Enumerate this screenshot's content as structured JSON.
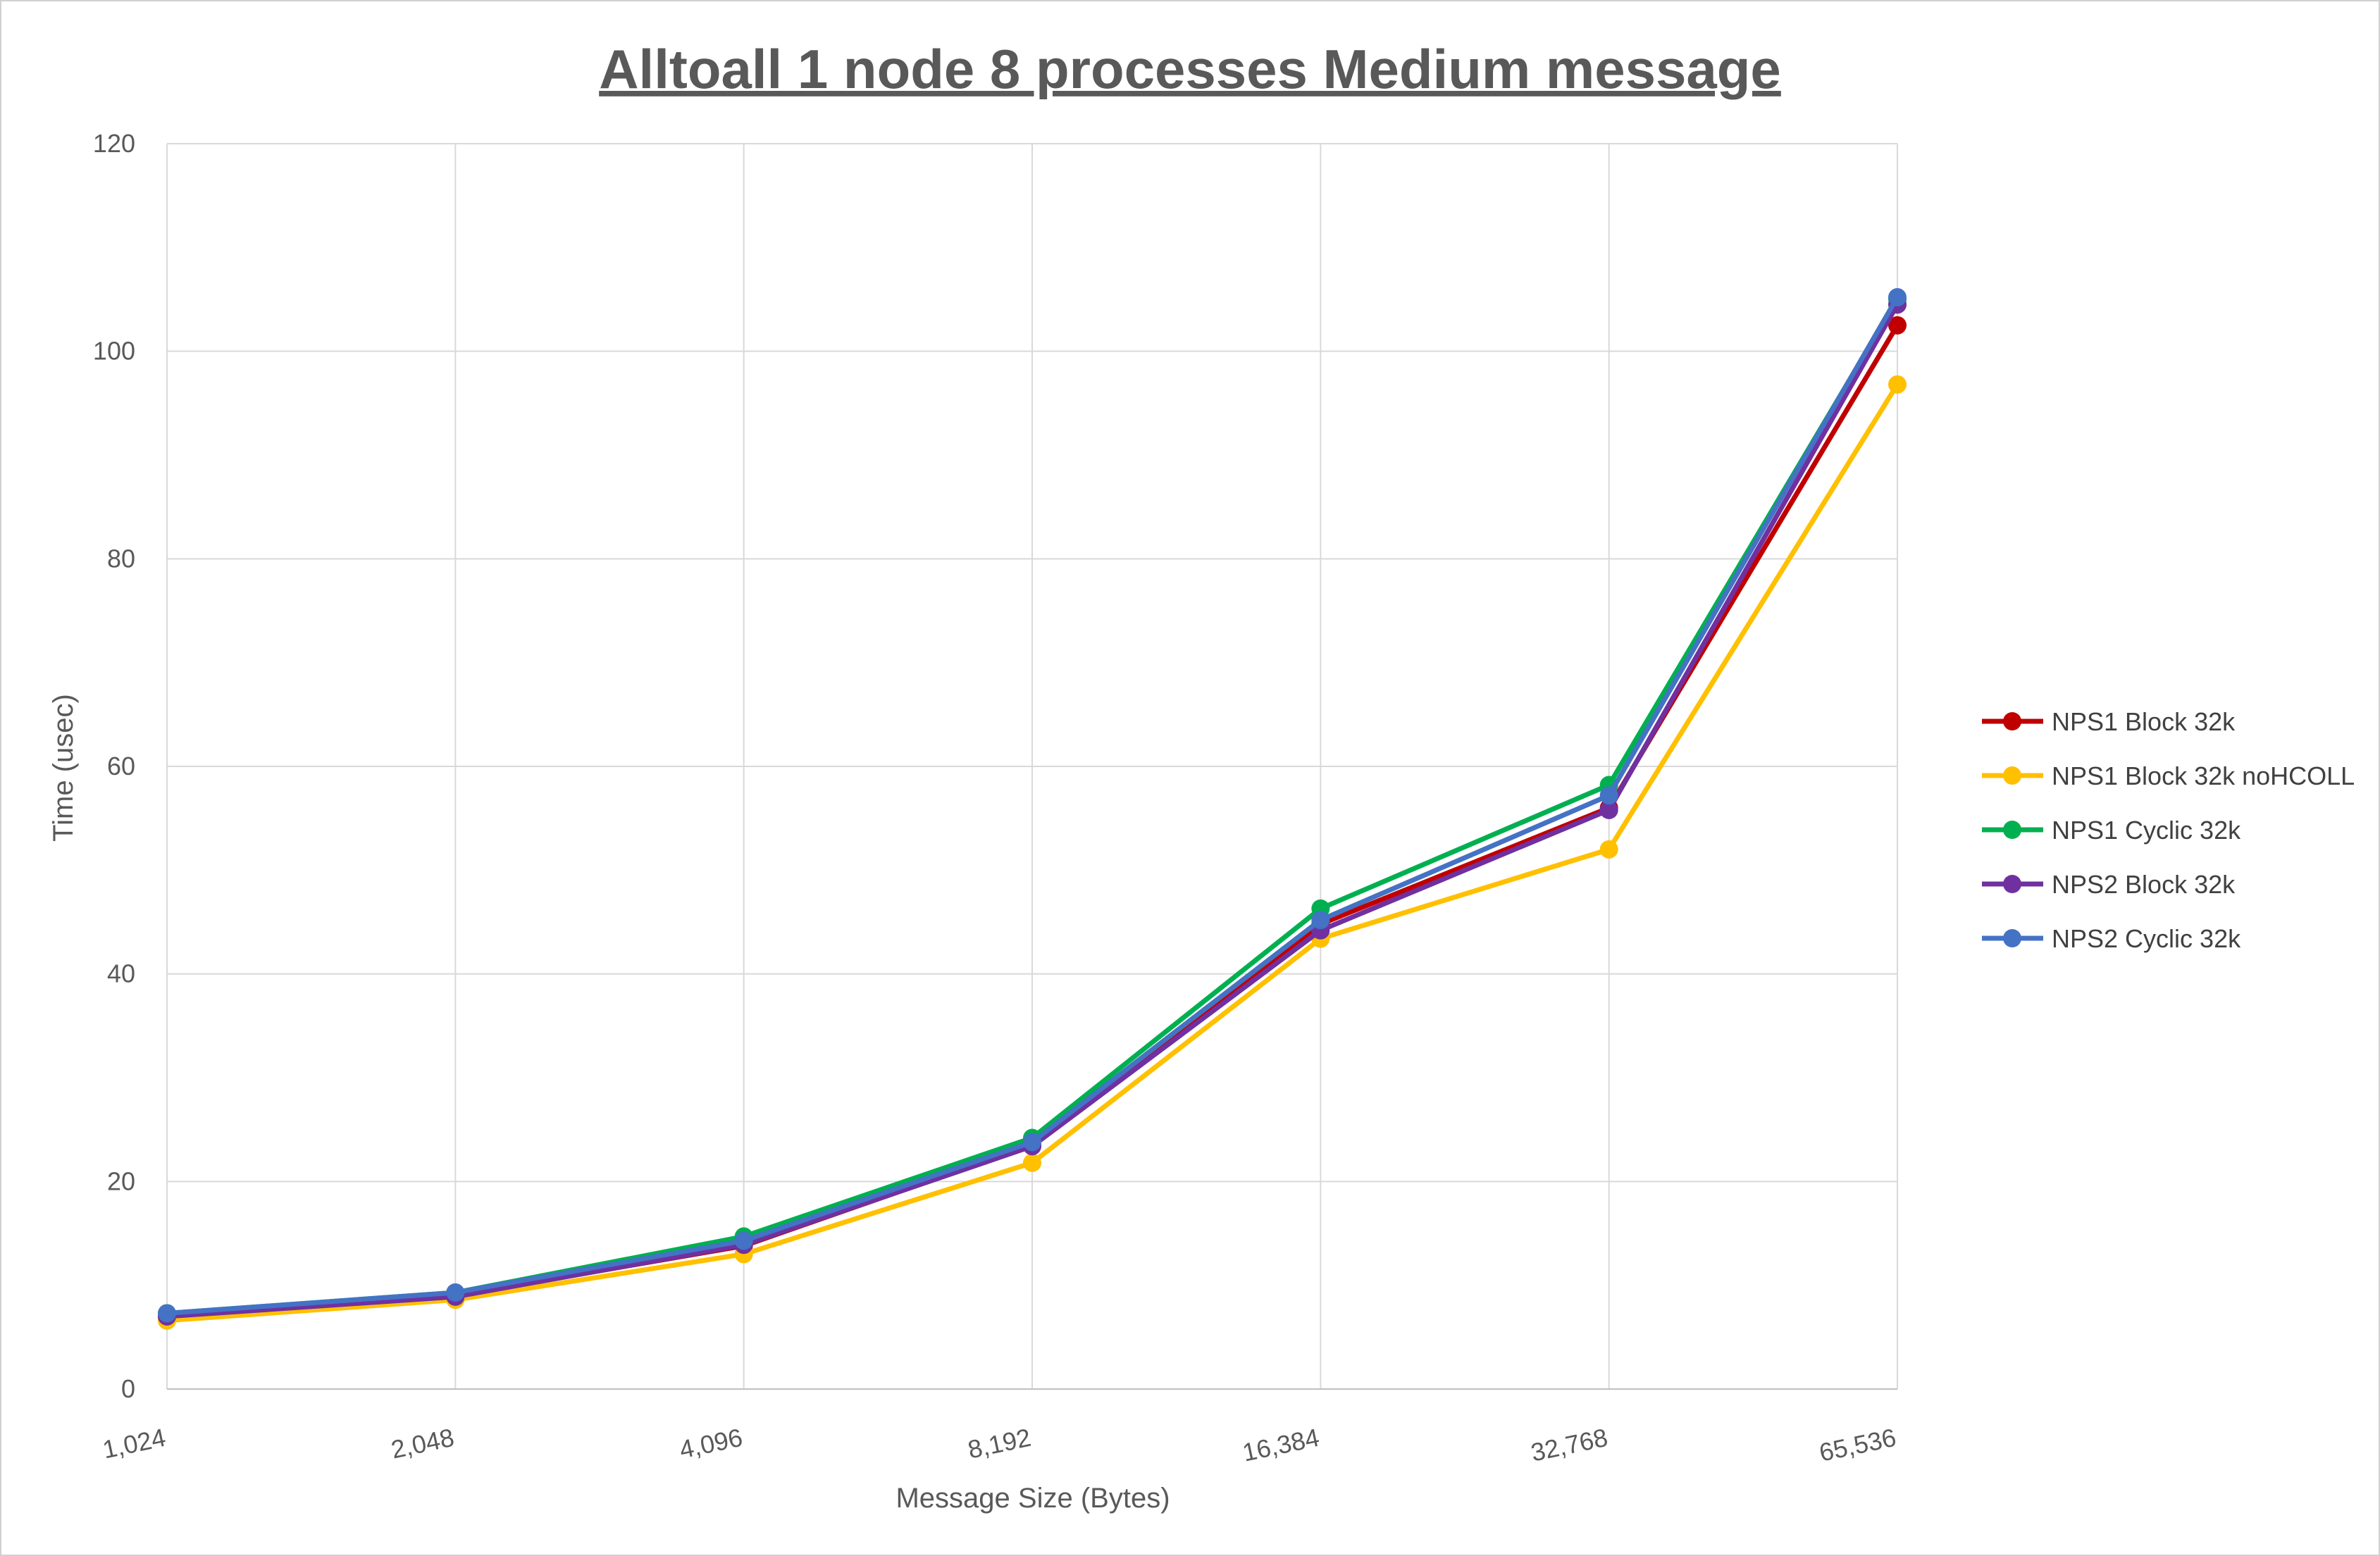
{
  "chart_data": {
    "type": "line",
    "title": "Alltoall 1 node 8 processes Medium message",
    "xlabel": "Message Size (Bytes)",
    "ylabel": "Time (usec)",
    "categories": [
      "1,024",
      "2,048",
      "4,096",
      "8,192",
      "16,384",
      "32,768",
      "65,536"
    ],
    "ylim": [
      0,
      120
    ],
    "yticks": [
      0,
      20,
      40,
      60,
      80,
      100,
      120
    ],
    "grid": true,
    "legend_position": "right",
    "series": [
      {
        "name": "NPS1 Block 32k",
        "color": "#c00000",
        "values": [
          7.0,
          9.0,
          13.8,
          23.5,
          44.8,
          56.0,
          102.5
        ]
      },
      {
        "name": "NPS1 Block 32k noHCOLL",
        "color": "#ffc000",
        "values": [
          6.6,
          8.6,
          13.0,
          21.8,
          43.4,
          52.0,
          96.8
        ]
      },
      {
        "name": "NPS1 Cyclic 32k",
        "color": "#00b050",
        "values": [
          7.3,
          9.3,
          14.7,
          24.2,
          46.3,
          58.2,
          105.0
        ]
      },
      {
        "name": "NPS2 Block 32k",
        "color": "#7030a0",
        "values": [
          7.0,
          8.9,
          13.9,
          23.4,
          44.2,
          55.8,
          104.5
        ]
      },
      {
        "name": "NPS2 Cyclic 32k",
        "color": "#4472c4",
        "values": [
          7.3,
          9.3,
          14.3,
          23.8,
          45.2,
          57.2,
          105.2
        ]
      }
    ]
  }
}
